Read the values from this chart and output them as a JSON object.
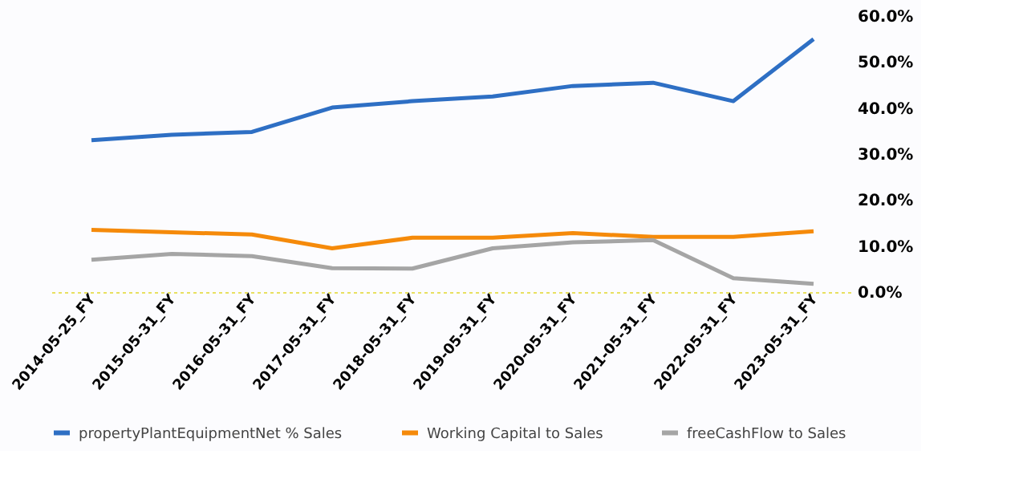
{
  "chart_data": {
    "type": "line",
    "categories": [
      "2014-05-25_FY",
      "2015-05-31_FY",
      "2016-05-31_FY",
      "2017-05-31_FY",
      "2018-05-31_FY",
      "2019-05-31_FY",
      "2020-05-31_FY",
      "2021-05-31_FY",
      "2022-05-31_FY",
      "2023-05-31_FY"
    ],
    "series": [
      {
        "name": "propertyPlantEquipmentNet % Sales",
        "color": "#2e6fc4",
        "values": [
          33.0,
          34.2,
          34.8,
          40.1,
          41.5,
          42.5,
          44.8,
          45.5,
          41.5,
          55.0
        ]
      },
      {
        "name": "Working Capital to Sales",
        "color": "#f58a0a",
        "values": [
          13.5,
          13.0,
          12.5,
          9.5,
          11.8,
          11.8,
          12.8,
          12.0,
          12.0,
          13.2
        ]
      },
      {
        "name": "freeCashFlow to Sales",
        "color": "#a5a5a5",
        "values": [
          7.0,
          8.3,
          7.8,
          5.2,
          5.1,
          9.5,
          10.8,
          11.3,
          3.0,
          1.8
        ]
      }
    ],
    "ylim": [
      0,
      60
    ],
    "yticks": [
      {
        "value": 0,
        "label": "0.0%"
      },
      {
        "value": 10,
        "label": "10.0%"
      },
      {
        "value": 20,
        "label": "20.0%"
      },
      {
        "value": 30,
        "label": "30.0%"
      },
      {
        "value": 40,
        "label": "40.0%"
      },
      {
        "value": 50,
        "label": "50.0%"
      },
      {
        "value": 60,
        "label": "60.0%"
      }
    ],
    "grid": false,
    "legend": "bottom",
    "line_style": "solid",
    "marker": "none"
  }
}
